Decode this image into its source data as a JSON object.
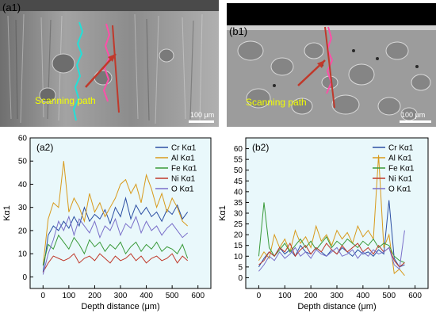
{
  "sem_panels": [
    {
      "label": "(a1)",
      "annotation": "Scanning path",
      "scalebar": "100 μm",
      "colors": {
        "cyan_path": "#22e0d8",
        "pink_path": "#ff4fa8",
        "line": "#c0392b",
        "text": "#f2ff00"
      }
    },
    {
      "label": "(b1)",
      "annotation": "Scanning path",
      "scalebar": "100 μm",
      "colors": {
        "pink_path": "#ff4fa8",
        "line": "#c0392b",
        "text": "#f2ff00"
      }
    }
  ],
  "chart_data": [
    {
      "type": "line",
      "panel_label": "(a2)",
      "xlabel": "Depth distance (μm)",
      "ylabel": "Kα1",
      "xlim": [
        -50,
        650
      ],
      "ylim": [
        -5,
        60
      ],
      "xticks": [
        0,
        100,
        200,
        300,
        400,
        500,
        600
      ],
      "yticks": [
        0,
        10,
        20,
        30,
        40,
        50,
        60
      ],
      "grid": false,
      "legend_position": "top-right",
      "background": "#e9f8fb",
      "x": [
        0,
        20,
        40,
        60,
        80,
        100,
        120,
        140,
        160,
        180,
        200,
        220,
        240,
        260,
        280,
        300,
        320,
        340,
        360,
        380,
        400,
        420,
        440,
        460,
        480,
        500,
        520,
        540,
        560
      ],
      "series": [
        {
          "name": "Cr Kα1",
          "color": "#2c4fa3",
          "values": [
            2,
            18,
            22,
            20,
            24,
            21,
            26,
            22,
            30,
            24,
            27,
            25,
            29,
            23,
            30,
            26,
            34,
            25,
            31,
            27,
            30,
            26,
            28,
            24,
            29,
            27,
            31,
            25,
            28
          ]
        },
        {
          "name": "Al Kα1",
          "color": "#d89a1c",
          "values": [
            5,
            25,
            32,
            30,
            50,
            28,
            34,
            30,
            24,
            36,
            28,
            32,
            26,
            30,
            34,
            40,
            42,
            36,
            40,
            32,
            44,
            38,
            30,
            36,
            28,
            34,
            30,
            24,
            22
          ]
        },
        {
          "name": "Fe Kα1",
          "color": "#3a9a3a",
          "values": [
            5,
            14,
            12,
            18,
            15,
            12,
            17,
            14,
            10,
            16,
            13,
            15,
            11,
            14,
            12,
            15,
            10,
            13,
            15,
            11,
            14,
            12,
            15,
            11,
            13,
            12,
            10,
            14,
            8
          ]
        },
        {
          "name": "Ni Kα1",
          "color": "#c0392b",
          "values": [
            2,
            6,
            9,
            8,
            7,
            8,
            10,
            6,
            8,
            9,
            7,
            10,
            8,
            6,
            9,
            7,
            8,
            10,
            7,
            9,
            6,
            8,
            9,
            7,
            8,
            10,
            6,
            9,
            7
          ]
        },
        {
          "name": "O Kα1",
          "color": "#7a6fc9",
          "values": [
            1,
            10,
            16,
            24,
            20,
            26,
            18,
            25,
            22,
            19,
            24,
            17,
            22,
            20,
            25,
            18,
            23,
            21,
            26,
            19,
            24,
            20,
            22,
            18,
            21,
            23,
            20,
            17,
            19
          ]
        }
      ]
    },
    {
      "type": "line",
      "panel_label": "(b2)",
      "xlabel": "Depth distance (μm)",
      "ylabel": "Kα1",
      "xlim": [
        -50,
        650
      ],
      "ylim": [
        -5,
        65
      ],
      "xticks": [
        0,
        100,
        200,
        300,
        400,
        500,
        600
      ],
      "yticks": [
        0,
        5,
        10,
        15,
        20,
        25,
        30,
        35,
        40,
        45,
        50,
        55,
        60
      ],
      "grid": false,
      "legend_position": "top-right",
      "background": "#e9f8fb",
      "x": [
        0,
        20,
        40,
        60,
        80,
        100,
        120,
        140,
        160,
        180,
        200,
        220,
        240,
        260,
        280,
        300,
        320,
        340,
        360,
        380,
        400,
        420,
        440,
        460,
        480,
        500,
        520,
        540,
        560
      ],
      "series": [
        {
          "name": "Cr Kα1",
          "color": "#2c4fa3",
          "values": [
            5,
            9,
            12,
            10,
            14,
            11,
            13,
            10,
            15,
            12,
            11,
            14,
            12,
            10,
            13,
            11,
            14,
            12,
            10,
            13,
            11,
            12,
            10,
            13,
            11,
            36,
            9,
            5,
            6
          ]
        },
        {
          "name": "Al Kα1",
          "color": "#d89a1c",
          "values": [
            8,
            12,
            9,
            20,
            14,
            18,
            12,
            22,
            16,
            19,
            14,
            24,
            17,
            20,
            15,
            22,
            18,
            21,
            16,
            24,
            19,
            22,
            18,
            57,
            14,
            20,
            2,
            4,
            1
          ]
        },
        {
          "name": "Fe Kα1",
          "color": "#3a9a3a",
          "values": [
            10,
            35,
            14,
            10,
            13,
            16,
            12,
            15,
            18,
            14,
            17,
            13,
            16,
            19,
            14,
            17,
            15,
            18,
            16,
            14,
            17,
            15,
            18,
            14,
            16,
            15,
            10,
            8,
            7
          ]
        },
        {
          "name": "Ni Kα1",
          "color": "#c0392b",
          "values": [
            6,
            8,
            12,
            10,
            14,
            12,
            16,
            10,
            13,
            15,
            11,
            14,
            12,
            16,
            13,
            11,
            15,
            12,
            14,
            16,
            12,
            14,
            11,
            15,
            12,
            14,
            8,
            5,
            7
          ]
        },
        {
          "name": "O Kα1",
          "color": "#7a6fc9",
          "values": [
            3,
            6,
            10,
            8,
            12,
            9,
            11,
            14,
            10,
            12,
            9,
            13,
            11,
            10,
            12,
            14,
            10,
            11,
            13,
            9,
            12,
            10,
            13,
            11,
            12,
            14,
            6,
            4,
            22
          ]
        }
      ]
    }
  ]
}
